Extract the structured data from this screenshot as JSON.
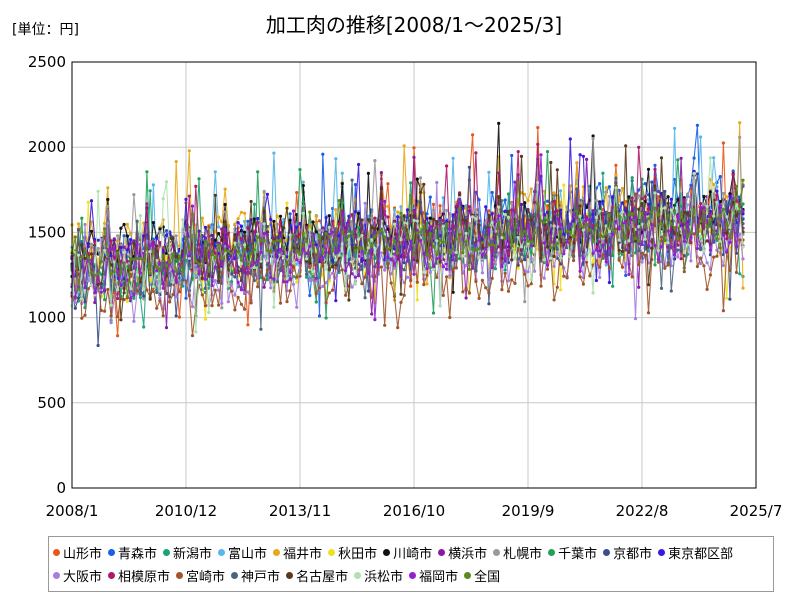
{
  "chart_data": {
    "type": "line",
    "title": "加工肉の推移[2008/1～2025/3]",
    "unit_label": "[単位：円]",
    "x_ticks": [
      "2008/1",
      "2010/12",
      "2013/11",
      "2016/10",
      "2019/9",
      "2022/8",
      "2025/7"
    ],
    "y_ticks": [
      "0",
      "500",
      "1000",
      "1500",
      "2000",
      "2500"
    ],
    "ylim": [
      0,
      2500
    ],
    "x_range": [
      "2008/1",
      "2025/7"
    ],
    "grid": true,
    "legend_position": "bottom",
    "period": {
      "start": "2008/1",
      "end": "2025/3"
    },
    "series": [
      {
        "name": "山形市",
        "color": "#e8561a",
        "level": [
          1250,
          1500,
          1620
        ],
        "noise": 160
      },
      {
        "name": "青森市",
        "color": "#1a5fe8",
        "level": [
          1280,
          1550,
          1680
        ],
        "noise": 170
      },
      {
        "name": "新潟市",
        "color": "#1aa37a",
        "level": [
          1200,
          1400,
          1500
        ],
        "noise": 150
      },
      {
        "name": "富山市",
        "color": "#55b7ea",
        "level": [
          1300,
          1520,
          1650
        ],
        "noise": 170
      },
      {
        "name": "福井市",
        "color": "#e8a81a",
        "level": [
          1400,
          1560,
          1650
        ],
        "noise": 180
      },
      {
        "name": "秋田市",
        "color": "#f0e020",
        "level": [
          1250,
          1400,
          1520
        ],
        "noise": 150
      },
      {
        "name": "川崎市",
        "color": "#111111",
        "level": [
          1380,
          1500,
          1600
        ],
        "noise": 150
      },
      {
        "name": "横浜市",
        "color": "#8a1aa3",
        "level": [
          1300,
          1450,
          1560
        ],
        "noise": 150
      },
      {
        "name": "札幌市",
        "color": "#999999",
        "level": [
          1300,
          1480,
          1600
        ],
        "noise": 160
      },
      {
        "name": "千葉市",
        "color": "#22a05a",
        "level": [
          1220,
          1420,
          1540
        ],
        "noise": 150
      },
      {
        "name": "京都市",
        "color": "#3a4f8a",
        "level": [
          1200,
          1400,
          1520
        ],
        "noise": 150
      },
      {
        "name": "東京都区部",
        "color": "#3a1ae0",
        "level": [
          1350,
          1500,
          1620
        ],
        "noise": 150
      },
      {
        "name": "大阪市",
        "color": "#a77de0",
        "level": [
          1150,
          1300,
          1420
        ],
        "noise": 140
      },
      {
        "name": "相模原市",
        "color": "#b01a6a",
        "level": [
          1300,
          1480,
          1580
        ],
        "noise": 160
      },
      {
        "name": "宮崎市",
        "color": "#a0552a",
        "level": [
          1100,
          1250,
          1380
        ],
        "noise": 140
      },
      {
        "name": "神戸市",
        "color": "#4a6580",
        "level": [
          1250,
          1420,
          1540
        ],
        "noise": 150
      },
      {
        "name": "名古屋市",
        "color": "#5a3a1a",
        "level": [
          1280,
          1450,
          1560
        ],
        "noise": 150
      },
      {
        "name": "浜松市",
        "color": "#aee0b0",
        "level": [
          1250,
          1420,
          1540
        ],
        "noise": 150
      },
      {
        "name": "福岡市",
        "color": "#9020d0",
        "level": [
          1250,
          1400,
          1520
        ],
        "noise": 150
      },
      {
        "name": "全国",
        "color": "#5a8a1a",
        "level": [
          1300,
          1450,
          1560
        ],
        "noise": 90
      }
    ]
  }
}
